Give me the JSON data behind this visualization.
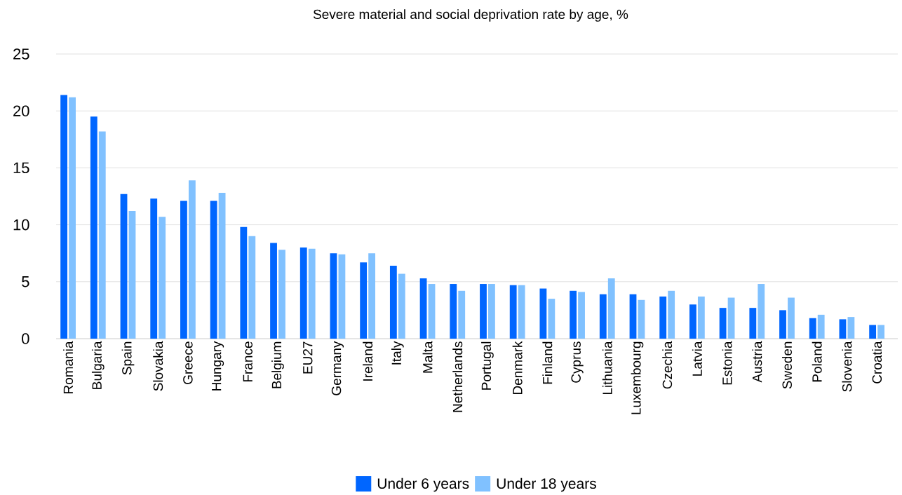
{
  "chart_data": {
    "type": "bar",
    "title": "Severe material and social deprivation rate by age, %",
    "categories": [
      "Romania",
      "Bulgaria",
      "Spain",
      "Slovakia",
      "Greece",
      "Hungary",
      "France",
      "Belgium",
      "EU27",
      "Germany",
      "Ireland",
      "Italy",
      "Malta",
      "Netherlands",
      "Portugal",
      "Denmark",
      "Finland",
      "Cyprus",
      "Lithuania",
      "Luxembourg",
      "Czechia",
      "Latvia",
      "Estonia",
      "Austria",
      "Sweden",
      "Poland",
      "Slovenia",
      "Croatia"
    ],
    "series": [
      {
        "name": "Under 6 years",
        "color": "#0066ff",
        "values": [
          21.4,
          19.5,
          12.7,
          12.3,
          12.1,
          12.1,
          9.8,
          8.4,
          8.0,
          7.5,
          6.7,
          6.4,
          5.3,
          4.8,
          4.8,
          4.7,
          4.4,
          4.2,
          3.9,
          3.9,
          3.7,
          3.0,
          2.7,
          2.7,
          2.5,
          1.8,
          1.7,
          1.2
        ]
      },
      {
        "name": "Under 18 years",
        "color": "#80c1ff",
        "values": [
          21.2,
          18.2,
          11.2,
          10.7,
          13.9,
          12.8,
          9.0,
          7.8,
          7.9,
          7.4,
          7.5,
          5.7,
          4.8,
          4.2,
          4.8,
          4.7,
          3.5,
          4.1,
          5.3,
          3.4,
          4.2,
          3.7,
          3.6,
          4.8,
          3.6,
          2.1,
          1.9,
          1.2
        ]
      }
    ],
    "ylim": [
      0,
      25
    ],
    "yticks": [
      0,
      5,
      10,
      15,
      20,
      25
    ],
    "grid": "y",
    "legend": "bottom"
  }
}
